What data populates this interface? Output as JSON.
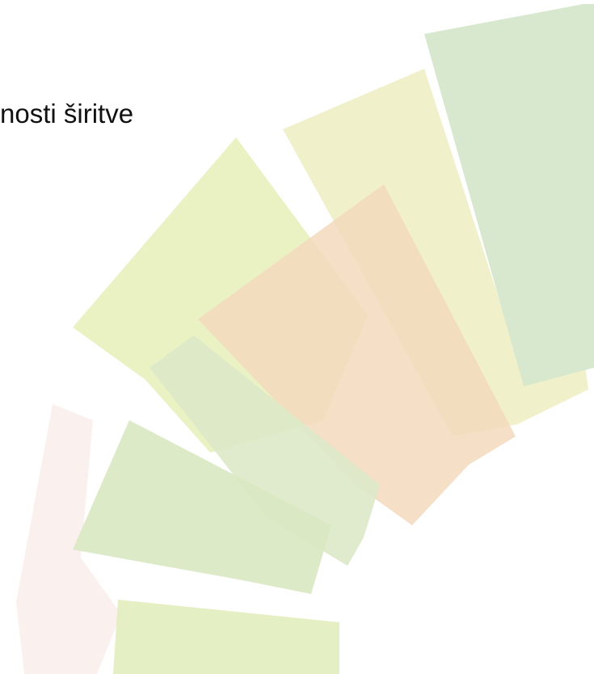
{
  "slide": {
    "title": "nosti širitve"
  }
}
